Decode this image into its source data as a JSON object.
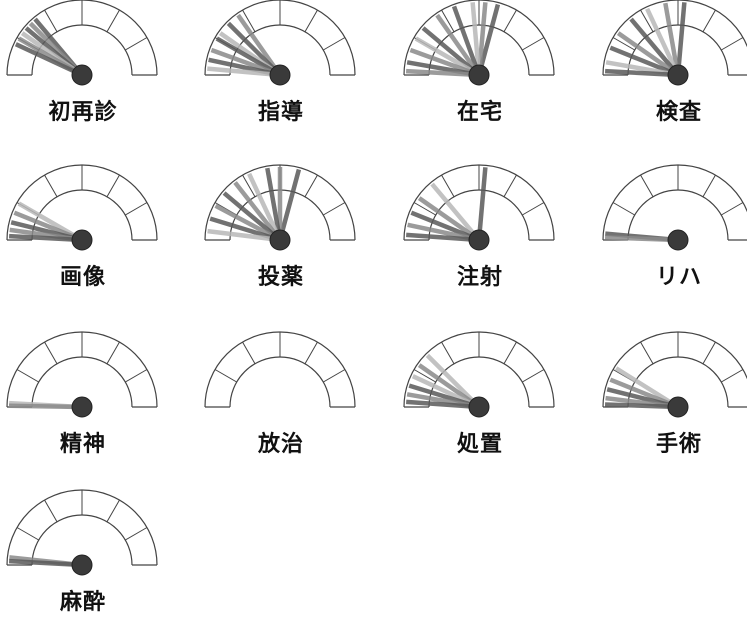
{
  "colors": {
    "outline": "#444444",
    "needle_dark": "#5a5a5a",
    "needle_mid": "#8a8a8a",
    "needle_light": "#b8b8b8",
    "hub": "#3a3a3a"
  },
  "gauges": [
    {
      "label": "初再診",
      "needles": [
        {
          "angle": 130,
          "shade": "dark"
        },
        {
          "angle": 135,
          "shade": "mid"
        },
        {
          "angle": 140,
          "shade": "dark"
        },
        {
          "angle": 145,
          "shade": "light"
        },
        {
          "angle": 150,
          "shade": "mid"
        },
        {
          "angle": 155,
          "shade": "dark"
        }
      ]
    },
    {
      "label": "指導",
      "needles": [
        {
          "angle": 125,
          "shade": "mid"
        },
        {
          "angle": 135,
          "shade": "dark"
        },
        {
          "angle": 145,
          "shade": "light"
        },
        {
          "angle": 150,
          "shade": "dark"
        },
        {
          "angle": 160,
          "shade": "mid"
        },
        {
          "angle": 168,
          "shade": "dark"
        },
        {
          "angle": 175,
          "shade": "light"
        }
      ]
    },
    {
      "label": "在宅",
      "needles": [
        {
          "angle": 75,
          "shade": "dark"
        },
        {
          "angle": 85,
          "shade": "mid"
        },
        {
          "angle": 95,
          "shade": "light"
        },
        {
          "angle": 110,
          "shade": "dark"
        },
        {
          "angle": 125,
          "shade": "mid"
        },
        {
          "angle": 140,
          "shade": "dark"
        },
        {
          "angle": 150,
          "shade": "light"
        },
        {
          "angle": 160,
          "shade": "mid"
        },
        {
          "angle": 170,
          "shade": "dark"
        },
        {
          "angle": 177,
          "shade": "mid"
        }
      ]
    },
    {
      "label": "検査",
      "needles": [
        {
          "angle": 85,
          "shade": "dark"
        },
        {
          "angle": 100,
          "shade": "mid"
        },
        {
          "angle": 115,
          "shade": "light"
        },
        {
          "angle": 130,
          "shade": "dark"
        },
        {
          "angle": 145,
          "shade": "mid"
        },
        {
          "angle": 158,
          "shade": "dark"
        },
        {
          "angle": 170,
          "shade": "light"
        },
        {
          "angle": 177,
          "shade": "dark"
        }
      ]
    },
    {
      "label": "画像",
      "needles": [
        {
          "angle": 150,
          "shade": "light"
        },
        {
          "angle": 158,
          "shade": "mid"
        },
        {
          "angle": 166,
          "shade": "dark"
        },
        {
          "angle": 172,
          "shade": "mid"
        },
        {
          "angle": 177,
          "shade": "dark"
        }
      ]
    },
    {
      "label": "投薬",
      "needles": [
        {
          "angle": 75,
          "shade": "dark"
        },
        {
          "angle": 90,
          "shade": "mid"
        },
        {
          "angle": 100,
          "shade": "dark"
        },
        {
          "angle": 115,
          "shade": "light"
        },
        {
          "angle": 128,
          "shade": "mid"
        },
        {
          "angle": 140,
          "shade": "dark"
        },
        {
          "angle": 152,
          "shade": "mid"
        },
        {
          "angle": 163,
          "shade": "dark"
        },
        {
          "angle": 173,
          "shade": "light"
        }
      ]
    },
    {
      "label": "注射",
      "needles": [
        {
          "angle": 85,
          "shade": "dark"
        },
        {
          "angle": 130,
          "shade": "light"
        },
        {
          "angle": 145,
          "shade": "mid"
        },
        {
          "angle": 158,
          "shade": "dark"
        },
        {
          "angle": 168,
          "shade": "mid"
        },
        {
          "angle": 176,
          "shade": "dark"
        }
      ]
    },
    {
      "label": "リハ",
      "needles": [
        {
          "angle": 175,
          "shade": "dark"
        },
        {
          "angle": 178,
          "shade": "mid"
        }
      ]
    },
    {
      "label": "精神",
      "needles": [
        {
          "angle": 177,
          "shade": "light"
        },
        {
          "angle": 179,
          "shade": "mid"
        }
      ]
    },
    {
      "label": "放治",
      "needles": []
    },
    {
      "label": "処置",
      "needles": [
        {
          "angle": 135,
          "shade": "light"
        },
        {
          "angle": 145,
          "shade": "mid"
        },
        {
          "angle": 155,
          "shade": "light"
        },
        {
          "angle": 163,
          "shade": "dark"
        },
        {
          "angle": 170,
          "shade": "mid"
        },
        {
          "angle": 176,
          "shade": "dark"
        }
      ]
    },
    {
      "label": "手術",
      "needles": [
        {
          "angle": 148,
          "shade": "light"
        },
        {
          "angle": 158,
          "shade": "mid"
        },
        {
          "angle": 166,
          "shade": "dark"
        },
        {
          "angle": 173,
          "shade": "mid"
        },
        {
          "angle": 178,
          "shade": "dark"
        }
      ]
    },
    {
      "label": "麻酔",
      "needles": [
        {
          "angle": 174,
          "shade": "mid"
        },
        {
          "angle": 177,
          "shade": "dark"
        }
      ]
    }
  ]
}
